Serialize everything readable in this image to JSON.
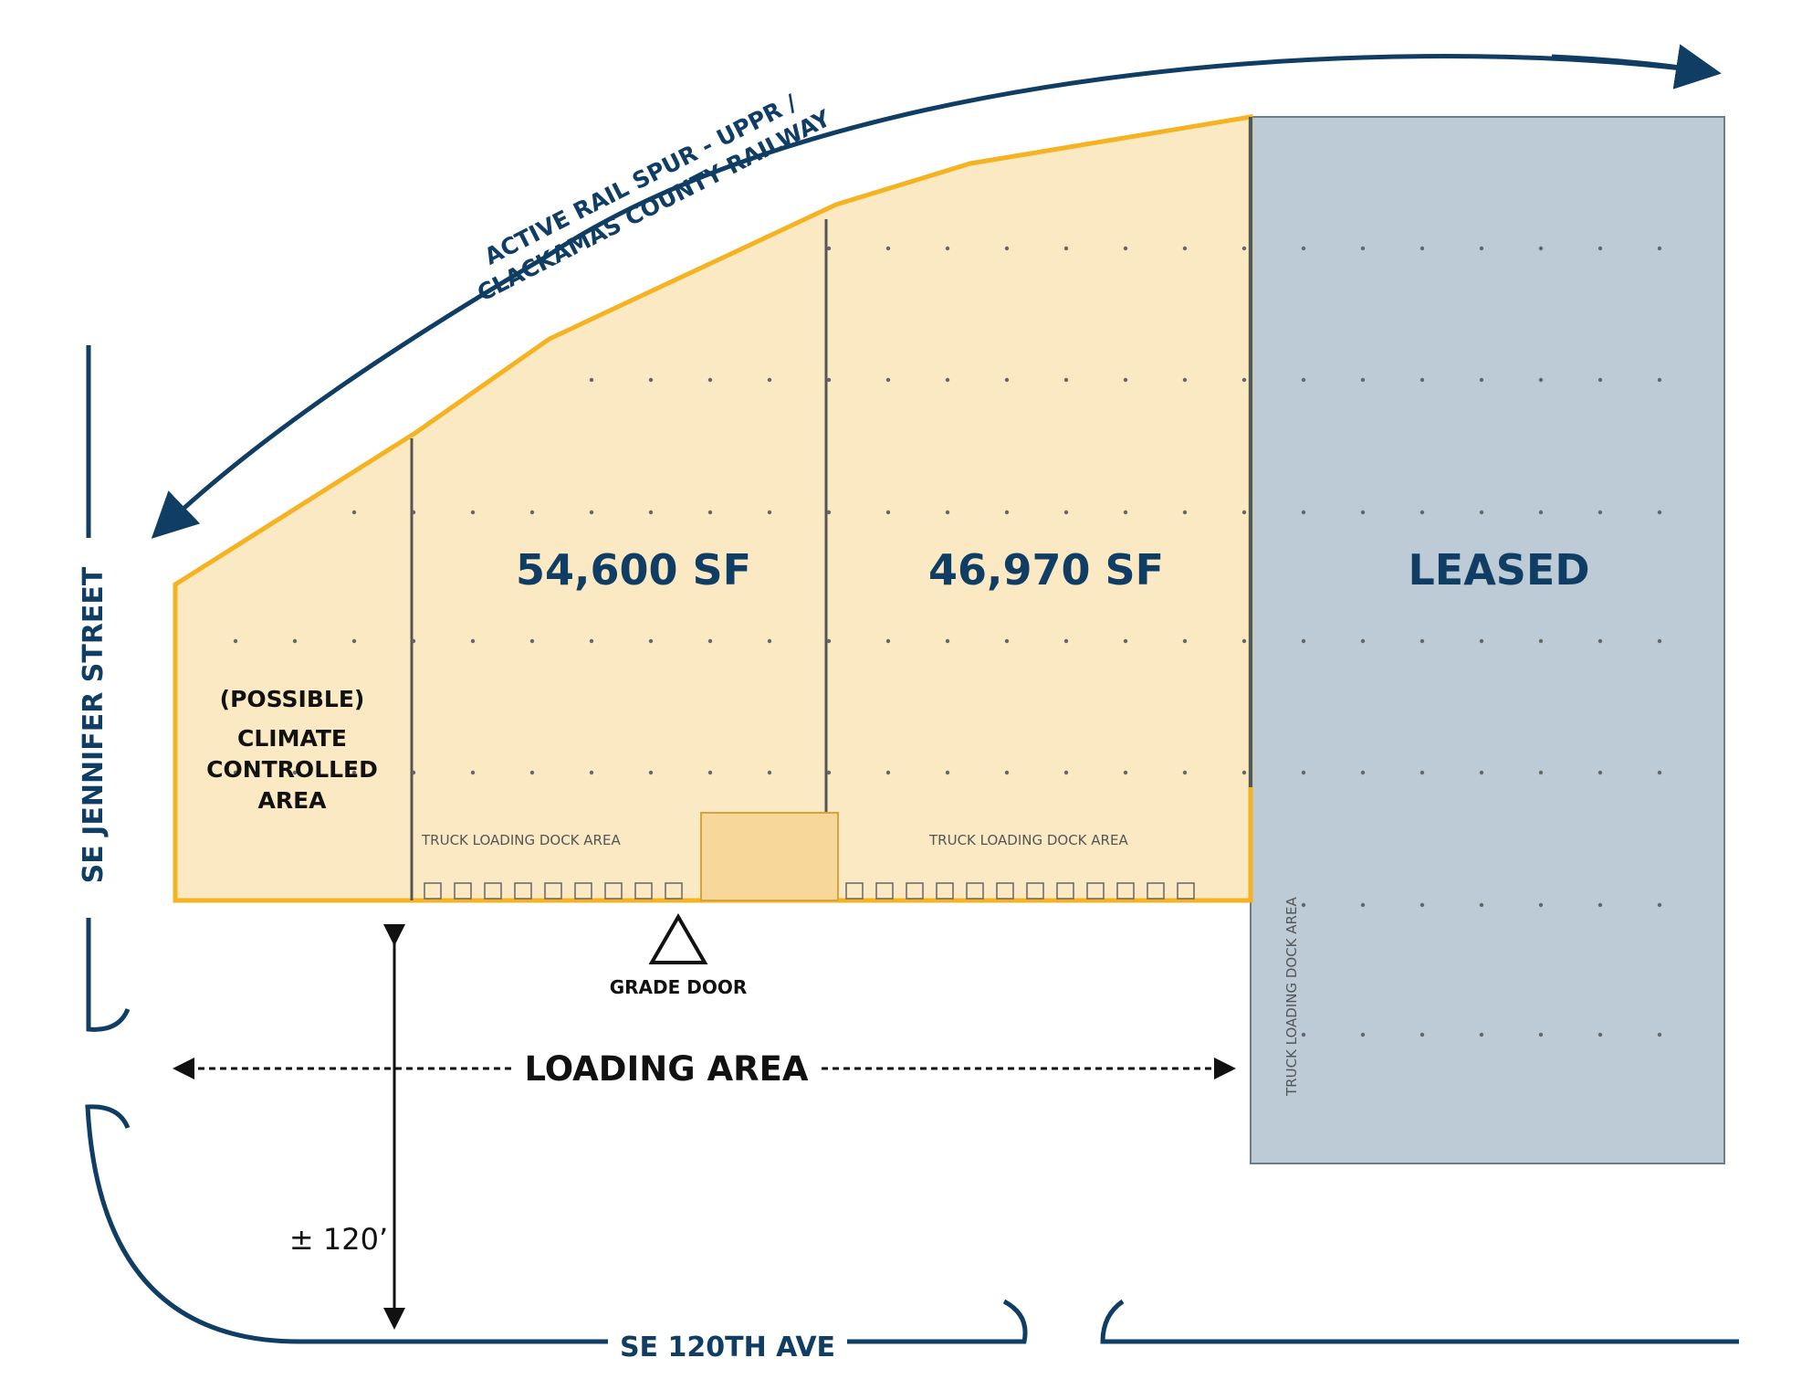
{
  "rail": {
    "line1": "ACTIVE RAIL SPUR - UPPR /",
    "line2": "CLACKAMAS COUNTY RAILWAY"
  },
  "streets": {
    "west": "SE JENNIFER STREET",
    "south": "SE 120TH AVE"
  },
  "spaces": [
    {
      "label": "54,600 SF"
    },
    {
      "label": "46,970 SF"
    },
    {
      "label": "LEASED"
    }
  ],
  "climate": {
    "line1": "(POSSIBLE)",
    "line2": "CLIMATE",
    "line3": "CONTROLLED",
    "line4": "AREA"
  },
  "dock_labels": {
    "left": "TRUCK LOADING DOCK AREA",
    "middle": "TRUCK LOADING DOCK AREA",
    "right": "TRUCK LOADING DOCK AREA"
  },
  "grade_door": "GRADE DOOR",
  "loading_area": "LOADING AREA",
  "distance": "± 120’",
  "colors": {
    "available_fill": "#fbe9c4",
    "available_outline": "#f5b221",
    "leased_fill": "#bccbd6",
    "navy": "#0f3d63"
  }
}
